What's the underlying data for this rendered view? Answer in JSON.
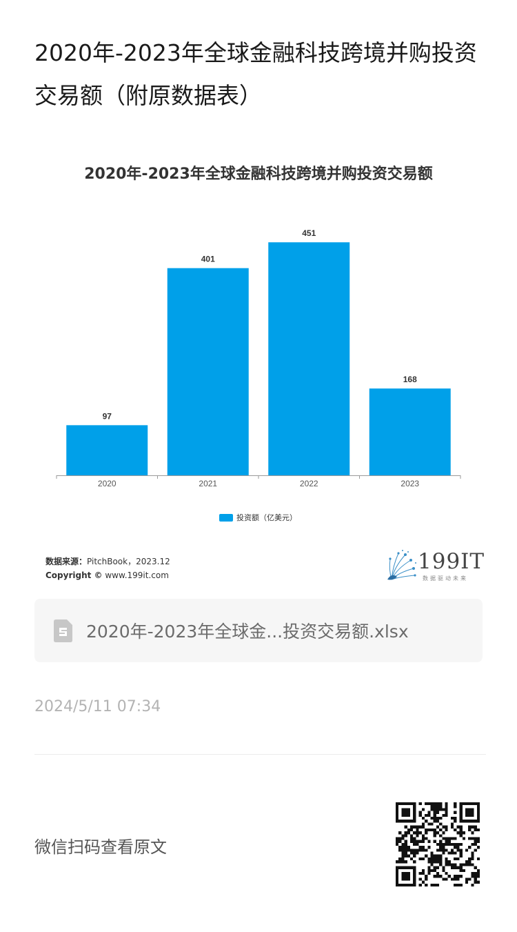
{
  "article": {
    "title": "2020年-2023年全球金融科技跨境并购投资交易额（附原数据表）"
  },
  "chart_data": {
    "type": "bar",
    "title": "2020年-2023年全球金融科技跨境并购投资交易额",
    "categories": [
      "2020",
      "2021",
      "2022",
      "2023"
    ],
    "series": [
      {
        "name": "投资额（亿美元）",
        "values": [
          97,
          401,
          451,
          168
        ],
        "color": "#00a0e9"
      }
    ],
    "ylim": [
      0,
      470
    ],
    "grid": false,
    "legend_position": "bottom"
  },
  "source": {
    "label": "数据来源：",
    "text": "PitchBook，2023.12",
    "copyright_label": "Copyright ©",
    "copyright_text": " www.199it.com"
  },
  "brand": {
    "name": "199IT",
    "slogan": "数据驱动未来"
  },
  "file": {
    "icon": "spreadsheet-file-icon",
    "name": "2020年-2023年全球金...投资交易额.xlsx"
  },
  "timestamp": "2024/5/11 07:34",
  "qr": {
    "label": "微信扫码查看原文",
    "icon": "qr-code"
  }
}
